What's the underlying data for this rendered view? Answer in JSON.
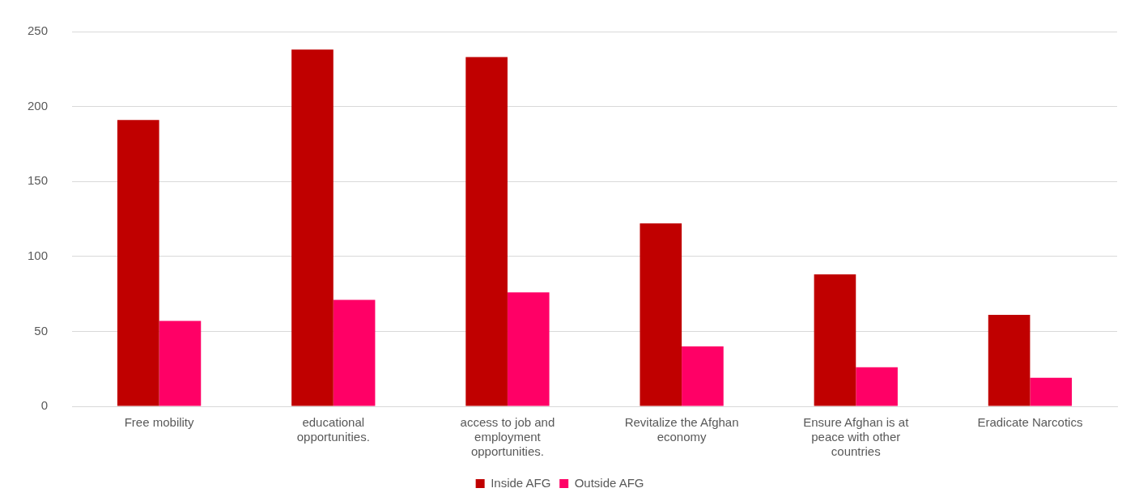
{
  "chart_data": {
    "type": "bar",
    "categories": [
      "Free mobility",
      "educational opportunities.",
      "access to job and employment opportunities.",
      "Revitalize the Afghan economy",
      "Ensure Afghan is at peace with other countries",
      "Eradicate Narcotics"
    ],
    "series": [
      {
        "name": "Inside AFG",
        "color": "#c00000",
        "values": [
          191,
          238,
          233,
          122,
          88,
          61
        ]
      },
      {
        "name": "Outside AFG",
        "color": "#ff0066",
        "values": [
          57,
          71,
          76,
          40,
          26,
          19
        ]
      }
    ],
    "ylim": [
      0,
      250
    ],
    "yticks": [
      0,
      50,
      100,
      150,
      200,
      250
    ],
    "grid": "y",
    "legend": "bottom"
  }
}
